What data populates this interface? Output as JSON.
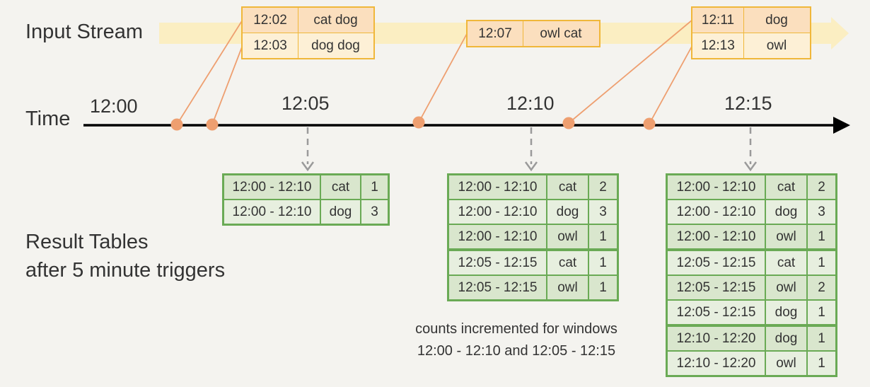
{
  "labels": {
    "input_stream": "Input Stream",
    "time": "Time",
    "result_tables_line1": "Result Tables",
    "result_tables_line2": "after 5 minute triggers"
  },
  "timeline": {
    "ticks": [
      "12:00",
      "12:05",
      "12:10",
      "12:15"
    ]
  },
  "events": [
    {
      "rows": [
        {
          "time": "12:02",
          "words": "cat dog"
        },
        {
          "time": "12:03",
          "words": "dog dog"
        }
      ]
    },
    {
      "rows": [
        {
          "time": "12:07",
          "words": "owl cat"
        }
      ]
    },
    {
      "rows": [
        {
          "time": "12:11",
          "words": "dog"
        },
        {
          "time": "12:13",
          "words": "owl"
        }
      ]
    }
  ],
  "result_tables": [
    {
      "trigger": "12:05",
      "rows": [
        {
          "window": "12:00 - 12:10",
          "word": "cat",
          "count": "1"
        },
        {
          "window": "12:00 - 12:10",
          "word": "dog",
          "count": "3"
        }
      ]
    },
    {
      "trigger": "12:10",
      "rows": [
        {
          "window": "12:00 - 12:10",
          "word": "cat",
          "count": "2"
        },
        {
          "window": "12:00 - 12:10",
          "word": "dog",
          "count": "3"
        },
        {
          "window": "12:00 - 12:10",
          "word": "owl",
          "count": "1"
        },
        {
          "window": "12:05 - 12:15",
          "word": "cat",
          "count": "1"
        },
        {
          "window": "12:05 - 12:15",
          "word": "owl",
          "count": "1"
        }
      ]
    },
    {
      "trigger": "12:15",
      "rows": [
        {
          "window": "12:00 - 12:10",
          "word": "cat",
          "count": "2"
        },
        {
          "window": "12:00 - 12:10",
          "word": "dog",
          "count": "3"
        },
        {
          "window": "12:00 - 12:10",
          "word": "owl",
          "count": "1"
        },
        {
          "window": "12:05 - 12:15",
          "word": "cat",
          "count": "1"
        },
        {
          "window": "12:05 - 12:15",
          "word": "owl",
          "count": "2"
        },
        {
          "window": "12:05 - 12:15",
          "word": "dog",
          "count": "1"
        },
        {
          "window": "12:10 - 12:20",
          "word": "dog",
          "count": "1"
        },
        {
          "window": "12:10 - 12:20",
          "word": "owl",
          "count": "1"
        }
      ]
    }
  ],
  "note": {
    "line1": "counts incremented for windows",
    "line2": "12:00 - 12:10 and 12:05 - 12:15"
  },
  "colors": {
    "event_border": "#f0b73a",
    "event_fill": "#fdf0d6",
    "event_highlight": "#fbdfbe",
    "stream_band": "#fbeec2",
    "table_border": "#6aaa55",
    "table_fill": "#e7efdf",
    "dot": "#ee9f70",
    "axis": "#000000",
    "dashed_arrow": "#9a9a9a"
  }
}
